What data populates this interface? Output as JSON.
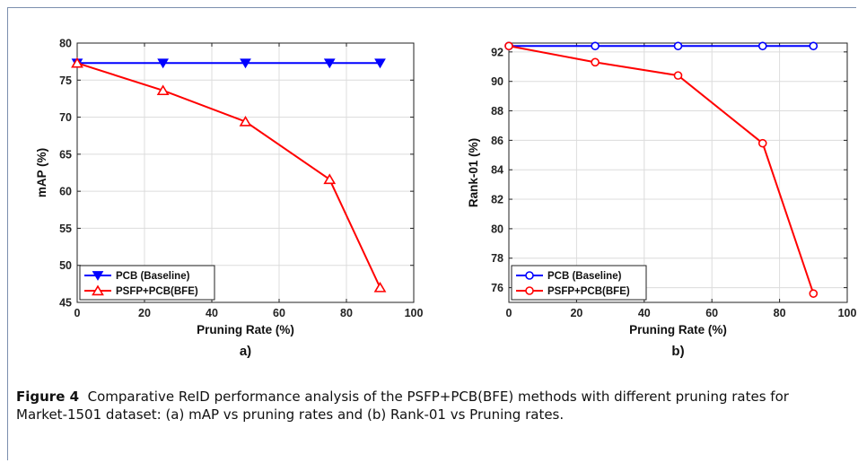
{
  "caption": {
    "label": "Figure 4",
    "text": "Comparative ReID performance analysis of the PSFP+PCB(BFE) methods with different pruning rates for Market-1501 dataset: (a) mAP vs pruning rates and (b) Rank-01 vs Pruning rates."
  },
  "chart_data": [
    {
      "type": "line",
      "panel_label": "a)",
      "xlabel": "Pruning Rate (%)",
      "ylabel": "mAP (%)",
      "xlim": [
        0,
        100
      ],
      "ylim": [
        45,
        80
      ],
      "xticks": [
        0,
        20,
        40,
        60,
        80,
        100
      ],
      "yticks": [
        45,
        50,
        55,
        60,
        65,
        70,
        75,
        80
      ],
      "grid": true,
      "legend_position": "bottom-left",
      "series": [
        {
          "name": "PCB (Baseline)",
          "color": "#0000ff",
          "marker": "triangle-down",
          "x": [
            0,
            25.5,
            50,
            75,
            90
          ],
          "y": [
            77.3,
            77.3,
            77.3,
            77.3,
            77.3
          ]
        },
        {
          "name": "PSFP+PCB(BFE)",
          "color": "#ff0000",
          "marker": "triangle-up",
          "x": [
            0,
            25.5,
            50,
            75,
            90
          ],
          "y": [
            77.3,
            73.6,
            69.4,
            61.6,
            47.0
          ]
        }
      ]
    },
    {
      "type": "line",
      "panel_label": "b)",
      "xlabel": "Pruning Rate (%)",
      "ylabel": "Rank-01 (%)",
      "xlim": [
        0,
        100
      ],
      "ylim": [
        75,
        92.6
      ],
      "xticks": [
        0,
        20,
        40,
        60,
        80,
        100
      ],
      "yticks": [
        76,
        78,
        80,
        82,
        84,
        86,
        88,
        90,
        92
      ],
      "grid": true,
      "legend_position": "bottom-left",
      "series": [
        {
          "name": "PCB (Baseline)",
          "color": "#0000ff",
          "marker": "circle",
          "x": [
            0,
            25.5,
            50,
            75,
            90
          ],
          "y": [
            92.4,
            92.4,
            92.4,
            92.4,
            92.4
          ]
        },
        {
          "name": "PSFP+PCB(BFE)",
          "color": "#ff0000",
          "marker": "circle",
          "x": [
            0,
            25.5,
            50,
            75,
            90
          ],
          "y": [
            92.4,
            91.3,
            90.4,
            85.8,
            75.6
          ]
        }
      ]
    }
  ]
}
